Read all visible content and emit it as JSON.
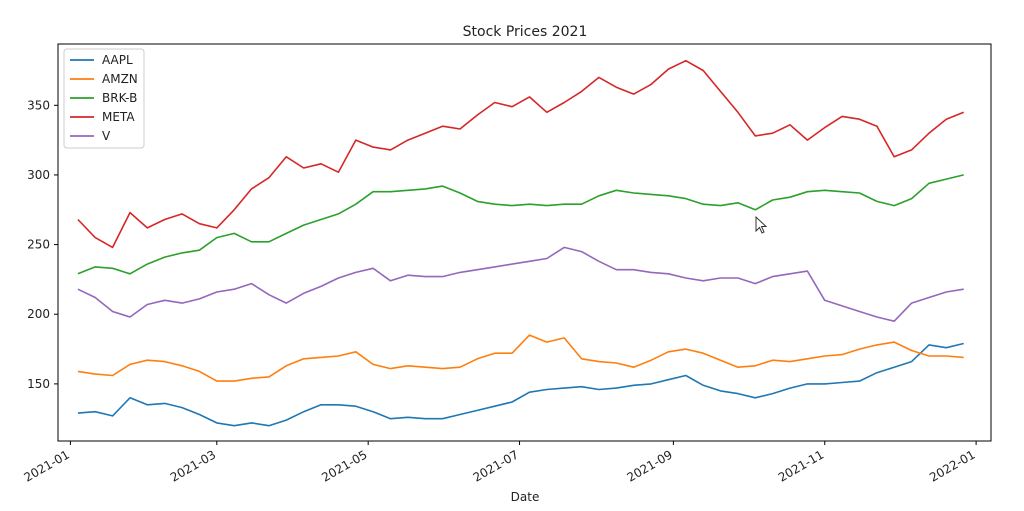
{
  "chart_data": {
    "type": "line",
    "title": "Stock Prices 2021",
    "xlabel": "Date",
    "ylabel": "",
    "xlim": [
      "2020-12-27",
      "2022-01-07"
    ],
    "ylim": [
      109,
      394
    ],
    "x_ticks": [
      "2021-01",
      "2021-03",
      "2021-05",
      "2021-07",
      "2021-09",
      "2021-11",
      "2022-01"
    ],
    "y_ticks": [
      150,
      200,
      250,
      300,
      350
    ],
    "grid": false,
    "legend_position": "top-left",
    "series": [
      {
        "name": "AAPL",
        "color": "#1f77b4",
        "x": [
          "2021-01-04",
          "2021-01-11",
          "2021-01-18",
          "2021-01-25",
          "2021-02-01",
          "2021-02-08",
          "2021-02-15",
          "2021-02-22",
          "2021-03-01",
          "2021-03-08",
          "2021-03-15",
          "2021-03-22",
          "2021-03-29",
          "2021-04-05",
          "2021-04-12",
          "2021-04-19",
          "2021-04-26",
          "2021-05-03",
          "2021-05-10",
          "2021-05-17",
          "2021-05-24",
          "2021-05-31",
          "2021-06-07",
          "2021-06-14",
          "2021-06-21",
          "2021-06-28",
          "2021-07-05",
          "2021-07-12",
          "2021-07-19",
          "2021-07-26",
          "2021-08-02",
          "2021-08-09",
          "2021-08-16",
          "2021-08-23",
          "2021-08-30",
          "2021-09-06",
          "2021-09-13",
          "2021-09-20",
          "2021-09-27",
          "2021-10-04",
          "2021-10-11",
          "2021-10-18",
          "2021-10-25",
          "2021-11-01",
          "2021-11-08",
          "2021-11-15",
          "2021-11-22",
          "2021-11-29",
          "2021-12-06",
          "2021-12-13",
          "2021-12-20",
          "2021-12-27"
        ],
        "values": [
          129,
          130,
          127,
          140,
          135,
          136,
          133,
          128,
          122,
          120,
          122,
          120,
          124,
          130,
          135,
          135,
          134,
          130,
          125,
          126,
          125,
          125,
          128,
          131,
          134,
          137,
          144,
          146,
          147,
          148,
          146,
          147,
          149,
          150,
          153,
          156,
          149,
          145,
          143,
          140,
          143,
          147,
          150,
          150,
          151,
          152,
          158,
          162,
          166,
          178,
          176,
          179
        ]
      },
      {
        "name": "AMZN",
        "color": "#ff7f0e",
        "x": [
          "2021-01-04",
          "2021-01-11",
          "2021-01-18",
          "2021-01-25",
          "2021-02-01",
          "2021-02-08",
          "2021-02-15",
          "2021-02-22",
          "2021-03-01",
          "2021-03-08",
          "2021-03-15",
          "2021-03-22",
          "2021-03-29",
          "2021-04-05",
          "2021-04-12",
          "2021-04-19",
          "2021-04-26",
          "2021-05-03",
          "2021-05-10",
          "2021-05-17",
          "2021-05-24",
          "2021-05-31",
          "2021-06-07",
          "2021-06-14",
          "2021-06-21",
          "2021-06-28",
          "2021-07-05",
          "2021-07-12",
          "2021-07-19",
          "2021-07-26",
          "2021-08-02",
          "2021-08-09",
          "2021-08-16",
          "2021-08-23",
          "2021-08-30",
          "2021-09-06",
          "2021-09-13",
          "2021-09-20",
          "2021-09-27",
          "2021-10-04",
          "2021-10-11",
          "2021-10-18",
          "2021-10-25",
          "2021-11-01",
          "2021-11-08",
          "2021-11-15",
          "2021-11-22",
          "2021-11-29",
          "2021-12-06",
          "2021-12-13",
          "2021-12-20",
          "2021-12-27"
        ],
        "values": [
          159,
          157,
          156,
          164,
          167,
          166,
          163,
          159,
          152,
          152,
          154,
          155,
          163,
          168,
          169,
          170,
          173,
          164,
          161,
          163,
          162,
          161,
          162,
          168,
          172,
          172,
          185,
          180,
          183,
          168,
          166,
          165,
          162,
          167,
          173,
          175,
          172,
          167,
          162,
          163,
          167,
          166,
          168,
          170,
          171,
          175,
          178,
          180,
          174,
          170,
          170,
          169
        ]
      },
      {
        "name": "BRK-B",
        "color": "#2ca02c",
        "x": [
          "2021-01-04",
          "2021-01-11",
          "2021-01-18",
          "2021-01-25",
          "2021-02-01",
          "2021-02-08",
          "2021-02-15",
          "2021-02-22",
          "2021-03-01",
          "2021-03-08",
          "2021-03-15",
          "2021-03-22",
          "2021-03-29",
          "2021-04-05",
          "2021-04-12",
          "2021-04-19",
          "2021-04-26",
          "2021-05-03",
          "2021-05-10",
          "2021-05-17",
          "2021-05-24",
          "2021-05-31",
          "2021-06-07",
          "2021-06-14",
          "2021-06-21",
          "2021-06-28",
          "2021-07-05",
          "2021-07-12",
          "2021-07-19",
          "2021-07-26",
          "2021-08-02",
          "2021-08-09",
          "2021-08-16",
          "2021-08-23",
          "2021-08-30",
          "2021-09-06",
          "2021-09-13",
          "2021-09-20",
          "2021-09-27",
          "2021-10-04",
          "2021-10-11",
          "2021-10-18",
          "2021-10-25",
          "2021-11-01",
          "2021-11-08",
          "2021-11-15",
          "2021-11-22",
          "2021-11-29",
          "2021-12-06",
          "2021-12-13",
          "2021-12-20",
          "2021-12-27"
        ],
        "values": [
          229,
          234,
          233,
          229,
          236,
          241,
          244,
          246,
          255,
          258,
          252,
          252,
          258,
          264,
          268,
          272,
          279,
          288,
          288,
          289,
          290,
          292,
          287,
          281,
          279,
          278,
          279,
          278,
          279,
          279,
          285,
          289,
          287,
          286,
          285,
          283,
          279,
          278,
          280,
          275,
          282,
          284,
          288,
          289,
          288,
          287,
          281,
          278,
          283,
          294,
          297,
          300
        ]
      },
      {
        "name": "META",
        "color": "#d62728",
        "x": [
          "2021-01-04",
          "2021-01-11",
          "2021-01-18",
          "2021-01-25",
          "2021-02-01",
          "2021-02-08",
          "2021-02-15",
          "2021-02-22",
          "2021-03-01",
          "2021-03-08",
          "2021-03-15",
          "2021-03-22",
          "2021-03-29",
          "2021-04-05",
          "2021-04-12",
          "2021-04-19",
          "2021-04-26",
          "2021-05-03",
          "2021-05-10",
          "2021-05-17",
          "2021-05-24",
          "2021-05-31",
          "2021-06-07",
          "2021-06-14",
          "2021-06-21",
          "2021-06-28",
          "2021-07-05",
          "2021-07-12",
          "2021-07-19",
          "2021-07-26",
          "2021-08-02",
          "2021-08-09",
          "2021-08-16",
          "2021-08-23",
          "2021-08-30",
          "2021-09-06",
          "2021-09-13",
          "2021-09-20",
          "2021-09-27",
          "2021-10-04",
          "2021-10-11",
          "2021-10-18",
          "2021-10-25",
          "2021-11-01",
          "2021-11-08",
          "2021-11-15",
          "2021-11-22",
          "2021-11-29",
          "2021-12-06",
          "2021-12-13",
          "2021-12-20",
          "2021-12-27"
        ],
        "values": [
          268,
          255,
          248,
          273,
          262,
          268,
          272,
          265,
          262,
          275,
          290,
          298,
          313,
          305,
          308,
          302,
          325,
          320,
          318,
          325,
          330,
          335,
          333,
          343,
          352,
          349,
          356,
          345,
          352,
          360,
          370,
          363,
          358,
          365,
          376,
          382,
          375,
          360,
          345,
          328,
          330,
          336,
          325,
          334,
          342,
          340,
          335,
          313,
          318,
          330,
          340,
          345
        ]
      },
      {
        "name": "V",
        "color": "#9467bd",
        "x": [
          "2021-01-04",
          "2021-01-11",
          "2021-01-18",
          "2021-01-25",
          "2021-02-01",
          "2021-02-08",
          "2021-02-15",
          "2021-02-22",
          "2021-03-01",
          "2021-03-08",
          "2021-03-15",
          "2021-03-22",
          "2021-03-29",
          "2021-04-05",
          "2021-04-12",
          "2021-04-19",
          "2021-04-26",
          "2021-05-03",
          "2021-05-10",
          "2021-05-17",
          "2021-05-24",
          "2021-05-31",
          "2021-06-07",
          "2021-06-14",
          "2021-06-21",
          "2021-06-28",
          "2021-07-05",
          "2021-07-12",
          "2021-07-19",
          "2021-07-26",
          "2021-08-02",
          "2021-08-09",
          "2021-08-16",
          "2021-08-23",
          "2021-08-30",
          "2021-09-06",
          "2021-09-13",
          "2021-09-20",
          "2021-09-27",
          "2021-10-04",
          "2021-10-11",
          "2021-10-18",
          "2021-10-25",
          "2021-11-01",
          "2021-11-08",
          "2021-11-15",
          "2021-11-22",
          "2021-11-29",
          "2021-12-06",
          "2021-12-13",
          "2021-12-20",
          "2021-12-27"
        ],
        "values": [
          218,
          212,
          202,
          198,
          207,
          210,
          208,
          211,
          216,
          218,
          222,
          214,
          208,
          215,
          220,
          226,
          230,
          233,
          224,
          228,
          227,
          227,
          230,
          232,
          234,
          236,
          238,
          240,
          248,
          245,
          238,
          232,
          232,
          230,
          229,
          226,
          224,
          226,
          226,
          222,
          227,
          229,
          231,
          210,
          206,
          202,
          198,
          195,
          208,
          212,
          216,
          218
        ]
      }
    ]
  }
}
